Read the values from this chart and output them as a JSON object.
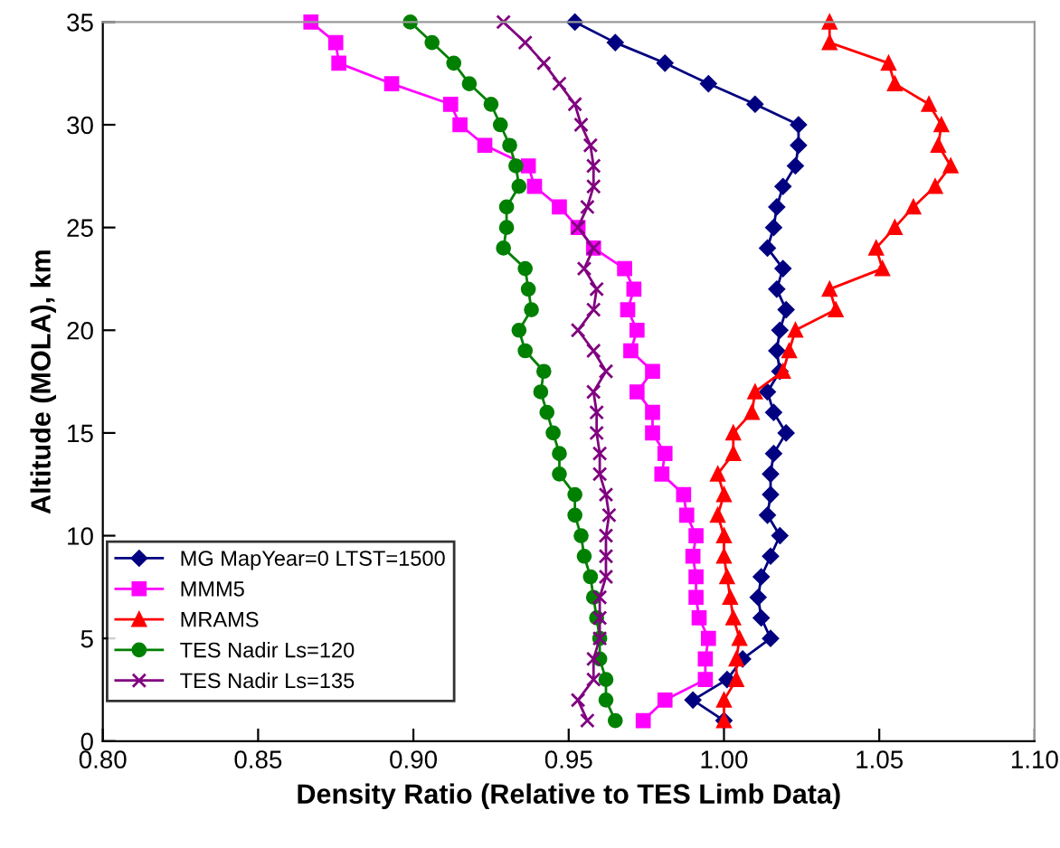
{
  "chart_data": {
    "type": "line",
    "xlabel": "Density Ratio (Relative to TES Limb Data)",
    "ylabel": "Altitude (MOLA), km",
    "xlim": [
      0.8,
      1.1
    ],
    "xticks": [
      {
        "value": 0.8,
        "label": "0.80"
      },
      {
        "value": 0.85,
        "label": "0.85"
      },
      {
        "value": 0.9,
        "label": "0.90"
      },
      {
        "value": 0.95,
        "label": "0.95"
      },
      {
        "value": 1.0,
        "label": "1.00"
      },
      {
        "value": 1.05,
        "label": "1.05"
      },
      {
        "value": 1.1,
        "label": "1.10"
      }
    ],
    "ylim": [
      0,
      35
    ],
    "yticks": [
      0,
      5,
      10,
      15,
      20,
      25,
      30,
      35
    ],
    "grid": false,
    "legend": "bottom left",
    "line_style": "solid",
    "series": [
      {
        "name": "MG MapYear=0 LTST=1500",
        "color": "#000080",
        "marker": "diamond",
        "x": [
          1.0,
          0.99,
          1.001,
          1.006,
          1.015,
          1.012,
          1.011,
          1.012,
          1.015,
          1.018,
          1.014,
          1.015,
          1.015,
          1.016,
          1.02,
          1.016,
          1.014,
          1.018,
          1.017,
          1.018,
          1.02,
          1.017,
          1.019,
          1.014,
          1.016,
          1.017,
          1.019,
          1.023,
          1.024,
          1.024,
          1.01,
          0.995,
          0.981,
          0.965,
          0.952
        ],
        "values": [
          1,
          2,
          3,
          4,
          5,
          6,
          7,
          8,
          9,
          10,
          11,
          12,
          13,
          14,
          15,
          16,
          17,
          18,
          19,
          20,
          21,
          22,
          23,
          24,
          25,
          26,
          27,
          28,
          29,
          30,
          31,
          32,
          33,
          34,
          35
        ]
      },
      {
        "name": "MMM5",
        "color": "#ff00ff",
        "marker": "square",
        "x": [
          0.974,
          0.981,
          0.994,
          0.994,
          0.995,
          0.992,
          0.991,
          0.991,
          0.99,
          0.991,
          0.988,
          0.987,
          0.98,
          0.981,
          0.977,
          0.977,
          0.972,
          0.977,
          0.97,
          0.972,
          0.969,
          0.971,
          0.968,
          0.958,
          0.953,
          0.947,
          0.939,
          0.937,
          0.923,
          0.915,
          0.912,
          0.893,
          0.876,
          0.875,
          0.867
        ],
        "values": [
          1,
          2,
          3,
          4,
          5,
          6,
          7,
          8,
          9,
          10,
          11,
          12,
          13,
          14,
          15,
          16,
          17,
          18,
          19,
          20,
          21,
          22,
          23,
          24,
          25,
          26,
          27,
          28,
          29,
          30,
          31,
          32,
          33,
          34,
          35
        ]
      },
      {
        "name": "MRAMS",
        "color": "#ff0000",
        "marker": "triangle",
        "x": [
          1.0,
          1.0,
          1.004,
          1.004,
          1.005,
          1.003,
          1.002,
          1.001,
          1.0,
          1.0,
          0.998,
          1.0,
          0.998,
          1.003,
          1.003,
          1.009,
          1.01,
          1.019,
          1.021,
          1.023,
          1.036,
          1.034,
          1.051,
          1.049,
          1.055,
          1.061,
          1.068,
          1.073,
          1.069,
          1.07,
          1.066,
          1.055,
          1.053,
          1.034,
          1.034
        ],
        "values": [
          1,
          2,
          3,
          4,
          5,
          6,
          7,
          8,
          9,
          10,
          11,
          12,
          13,
          14,
          15,
          16,
          17,
          18,
          19,
          20,
          21,
          22,
          23,
          24,
          25,
          26,
          27,
          28,
          29,
          30,
          31,
          32,
          33,
          34,
          35
        ]
      },
      {
        "name": "TES Nadir Ls=120",
        "color": "#008000",
        "marker": "circle",
        "x": [
          0.965,
          0.962,
          0.962,
          0.96,
          0.96,
          0.959,
          0.958,
          0.957,
          0.955,
          0.954,
          0.952,
          0.952,
          0.947,
          0.947,
          0.945,
          0.943,
          0.941,
          0.942,
          0.936,
          0.934,
          0.938,
          0.937,
          0.936,
          0.929,
          0.93,
          0.93,
          0.934,
          0.933,
          0.931,
          0.928,
          0.925,
          0.918,
          0.913,
          0.906,
          0.899
        ],
        "values": [
          1,
          2,
          3,
          4,
          5,
          6,
          7,
          8,
          9,
          10,
          11,
          12,
          13,
          14,
          15,
          16,
          17,
          18,
          19,
          20,
          21,
          22,
          23,
          24,
          25,
          26,
          27,
          28,
          29,
          30,
          31,
          32,
          33,
          34,
          35
        ]
      },
      {
        "name": "TES Nadir Ls=135",
        "color": "#800080",
        "marker": "cross",
        "x": [
          0.956,
          0.953,
          0.958,
          0.958,
          0.96,
          0.96,
          0.96,
          0.962,
          0.962,
          0.962,
          0.963,
          0.962,
          0.96,
          0.96,
          0.959,
          0.959,
          0.958,
          0.962,
          0.958,
          0.953,
          0.958,
          0.959,
          0.955,
          0.958,
          0.953,
          0.956,
          0.958,
          0.958,
          0.957,
          0.954,
          0.952,
          0.947,
          0.942,
          0.936,
          0.929
        ],
        "values": [
          1,
          2,
          3,
          4,
          5,
          6,
          7,
          8,
          9,
          10,
          11,
          12,
          13,
          14,
          15,
          16,
          17,
          18,
          19,
          20,
          21,
          22,
          23,
          24,
          25,
          26,
          27,
          28,
          29,
          30,
          31,
          32,
          33,
          34,
          35
        ]
      }
    ]
  }
}
